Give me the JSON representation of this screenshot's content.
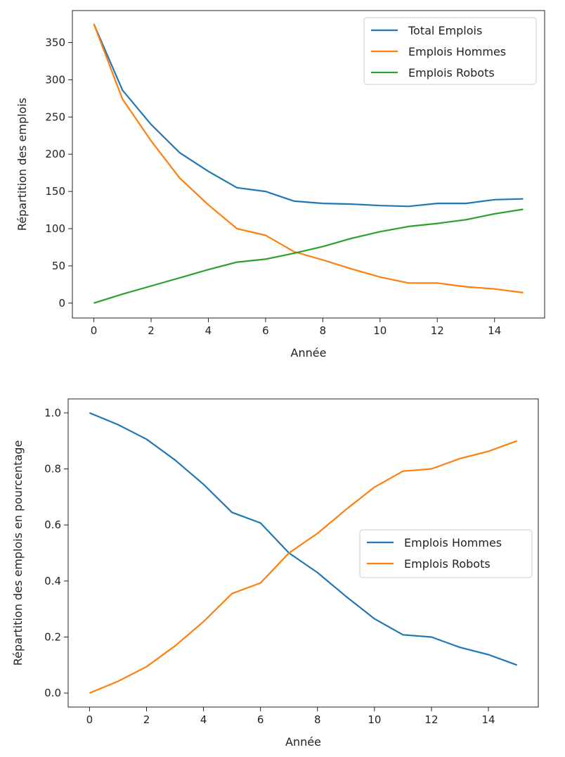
{
  "chart_data": [
    {
      "type": "line",
      "xlabel": "Année",
      "ylabel": "Répartition des emplois",
      "xlim": [
        -0.75,
        15.75
      ],
      "ylim": [
        -20,
        393
      ],
      "xticks": [
        0,
        2,
        4,
        6,
        8,
        10,
        12,
        14
      ],
      "yticks": [
        0,
        50,
        100,
        150,
        200,
        250,
        300,
        350
      ],
      "grid": false,
      "legend_position": "top-right",
      "x": [
        0,
        1,
        2,
        3,
        4,
        5,
        6,
        7,
        8,
        9,
        10,
        11,
        12,
        13,
        14,
        15
      ],
      "series": [
        {
          "name": "Total Emplois",
          "color": "#1f77b4",
          "values": [
            375,
            286,
            240,
            202,
            177,
            155,
            150,
            137,
            134,
            133,
            131,
            130,
            134,
            134,
            139,
            140
          ]
        },
        {
          "name": "Emplois Hommes",
          "color": "#ff7f0e",
          "values": [
            375,
            274,
            218,
            168,
            132,
            100,
            91,
            69,
            58,
            46,
            35,
            27,
            27,
            22,
            19,
            14
          ]
        },
        {
          "name": "Emplois Robots",
          "color": "#2ca02c",
          "values": [
            0,
            12,
            23,
            34,
            45,
            55,
            59,
            67,
            76,
            87,
            96,
            103,
            107,
            112,
            120,
            126
          ]
        }
      ]
    },
    {
      "type": "line",
      "xlabel": "Année",
      "ylabel": "Répartition des emplois en pourcentage",
      "xlim": [
        -0.75,
        15.75
      ],
      "ylim": [
        -0.05,
        1.05
      ],
      "xticks": [
        0,
        2,
        4,
        6,
        8,
        10,
        12,
        14
      ],
      "yticks": [
        0.0,
        0.2,
        0.4,
        0.6,
        0.8,
        1.0
      ],
      "ytick_labels": [
        "0.0",
        "0.2",
        "0.4",
        "0.6",
        "0.8",
        "1.0"
      ],
      "grid": false,
      "legend_position": "center-right",
      "x": [
        0,
        1,
        2,
        3,
        4,
        5,
        6,
        7,
        8,
        9,
        10,
        11,
        12,
        13,
        14,
        15
      ],
      "series": [
        {
          "name": "Emplois Hommes",
          "color": "#1f77b4",
          "values": [
            1.0,
            0.958,
            0.906,
            0.832,
            0.745,
            0.645,
            0.607,
            0.5,
            0.43,
            0.345,
            0.265,
            0.208,
            0.2,
            0.163,
            0.137,
            0.1
          ]
        },
        {
          "name": "Emplois Robots",
          "color": "#ff7f0e",
          "values": [
            0.0,
            0.042,
            0.094,
            0.168,
            0.255,
            0.355,
            0.393,
            0.5,
            0.57,
            0.655,
            0.735,
            0.792,
            0.8,
            0.837,
            0.863,
            0.9
          ]
        }
      ]
    }
  ]
}
